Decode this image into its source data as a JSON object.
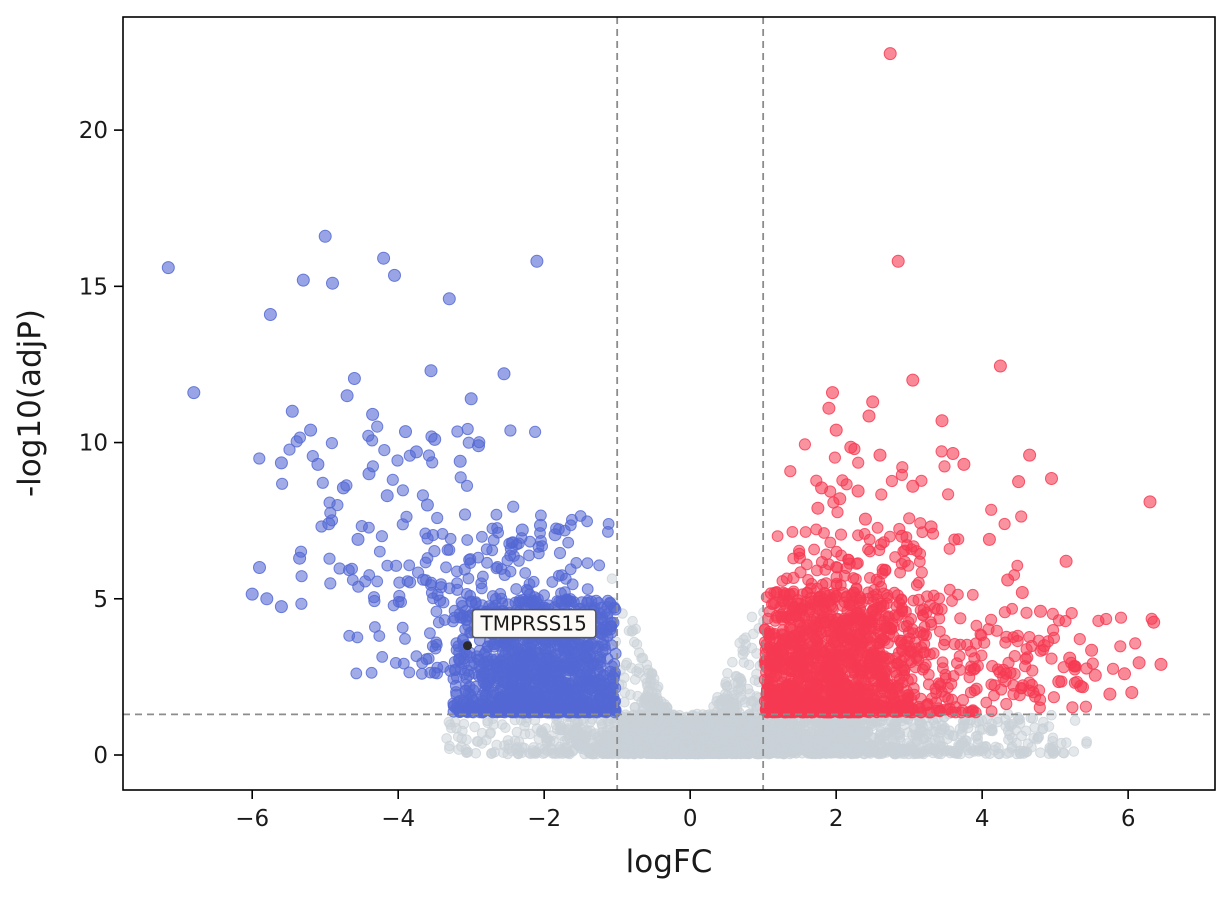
{
  "chart_data": {
    "type": "scatter",
    "title": "",
    "xlabel": "logFC",
    "ylabel": "-log10(adjP)",
    "xlim": [
      -7.77,
      7.19
    ],
    "ylim": [
      -1.12,
      23.62
    ],
    "grid": false,
    "legend": null,
    "seed": 42,
    "xticks": {
      "values": [
        -6,
        -4,
        -2,
        0,
        2,
        4,
        6
      ],
      "labels": [
        "−6",
        "−4",
        "−2",
        "0",
        "2",
        "4",
        "6"
      ]
    },
    "yticks": {
      "values": [
        0,
        5,
        10,
        15,
        20
      ],
      "labels": [
        "0",
        "5",
        "10",
        "15",
        "20"
      ]
    },
    "thresholds": {
      "vlines": [
        -1,
        1
      ],
      "hline": 1.3,
      "color": "#8c8c8c"
    },
    "colors": {
      "up": "#f63a52",
      "down": "#5468d4",
      "ns": "#c9d2d8",
      "spine": "#000000",
      "background": "#ffffff"
    },
    "point_radius_outlier": 6,
    "annotation": {
      "label": "TMPRSS15",
      "point": {
        "x": -3.05,
        "y": 3.5
      },
      "facecolor": "#fbfaf6",
      "edgecolor": "#55585c",
      "textcolor": "#111111",
      "pointcolor": "#2a2a2a"
    },
    "series": [
      {
        "name": "non-significant",
        "color": "#c9d2d8",
        "opacity": 0.5,
        "clusters": [
          {
            "name": "bottom-band",
            "count": 1800,
            "radius": 4.8,
            "x": {
              "dist": "normal",
              "mean": 0.8,
              "sd": 1.9,
              "min": -3.35,
              "max": 5.55
            },
            "y": {
              "dist": "pow",
              "min": 0.03,
              "max": 1.32,
              "exp": 1.6
            }
          },
          {
            "name": "center-valley",
            "count": 1200,
            "radius": 4.8,
            "x": {
              "dist": "normal",
              "mean": 0,
              "sd": 0.5,
              "min": -1.08,
              "max": 1.08
            },
            "y": {
              "dist": "valley",
              "min": 0.04,
              "slope": 5.6,
              "xexp": 1.15,
              "cap": 6.0,
              "yexp": 2.3
            }
          }
        ],
        "points": []
      },
      {
        "name": "down-regulated",
        "color": "#5468d4",
        "opacity": 0.55,
        "clusters": [
          {
            "name": "down-core",
            "count": 1150,
            "radius": 5.4,
            "x": {
              "dist": "normal",
              "mean": -2.0,
              "sd": 0.75,
              "min": -3.25,
              "max": -1.02
            },
            "y": {
              "dist": "pow",
              "min": 1.36,
              "max": 5.0,
              "exp": 1.9
            }
          },
          {
            "name": "down-upper",
            "count": 240,
            "radius": 5.4,
            "x": {
              "dist": "normal",
              "mean": -2.6,
              "sd": 0.9,
              "min": -4.7,
              "max": -1.05
            },
            "y": {
              "dist": "pow",
              "min": 2.6,
              "max": 7.7,
              "exp": 1.5
            }
          },
          {
            "name": "down-high",
            "count": 70,
            "radius": 5.6,
            "x": {
              "dist": "normal",
              "mean": -3.8,
              "sd": 1.1,
              "min": -6.1,
              "max": -1.5
            },
            "y": {
              "dist": "pow",
              "min": 4.8,
              "max": 10.8,
              "exp": 1.1
            }
          }
        ],
        "points": [
          [
            -7.15,
            15.6
          ],
          [
            -6.8,
            11.6
          ],
          [
            -5.75,
            14.1
          ],
          [
            -5.3,
            15.2
          ],
          [
            -5.0,
            16.6
          ],
          [
            -4.9,
            15.1
          ],
          [
            -4.2,
            15.9
          ],
          [
            -4.05,
            15.35
          ],
          [
            -2.1,
            15.8
          ],
          [
            -3.3,
            14.6
          ],
          [
            -4.6,
            12.05
          ],
          [
            -5.45,
            11.0
          ],
          [
            -5.2,
            10.4
          ],
          [
            -4.35,
            10.9
          ],
          [
            -3.9,
            10.35
          ],
          [
            -3.55,
            12.3
          ],
          [
            -2.55,
            12.2
          ],
          [
            -3.0,
            11.4
          ],
          [
            -4.7,
            11.5
          ],
          [
            -5.6,
            9.35
          ],
          [
            -5.1,
            9.3
          ],
          [
            -4.75,
            8.55
          ],
          [
            -4.4,
            9.0
          ],
          [
            -3.75,
            9.7
          ],
          [
            -3.5,
            10.1
          ],
          [
            -3.15,
            9.4
          ],
          [
            -2.9,
            9.9
          ],
          [
            -4.15,
            8.3
          ],
          [
            -3.6,
            8.0
          ],
          [
            -5.9,
            6.0
          ],
          [
            -5.8,
            5.0
          ],
          [
            -5.6,
            4.75
          ],
          [
            -4.95,
            7.4
          ],
          [
            -4.55,
            6.9
          ],
          [
            -5.35,
            6.3
          ],
          [
            -2.3,
            7.2
          ],
          [
            -2.05,
            7.35
          ],
          [
            -6.0,
            5.15
          ],
          [
            -2.45,
            6.6
          ],
          [
            -1.85,
            7.05
          ]
        ]
      },
      {
        "name": "up-regulated",
        "color": "#f63a52",
        "opacity": 0.55,
        "clusters": [
          {
            "name": "up-core",
            "count": 1250,
            "radius": 5.4,
            "x": {
              "dist": "normal",
              "mean": 1.8,
              "sd": 0.85,
              "min": 1.02,
              "max": 4.45
            },
            "y": {
              "dist": "pow",
              "min": 1.36,
              "max": 5.2,
              "exp": 1.9
            }
          },
          {
            "name": "up-upper",
            "count": 220,
            "radius": 5.4,
            "x": {
              "dist": "normal",
              "mean": 2.2,
              "sd": 0.9,
              "min": 1.05,
              "max": 5.1
            },
            "y": {
              "dist": "pow",
              "min": 2.7,
              "max": 7.4,
              "exp": 1.5
            }
          },
          {
            "name": "up-right-sparse",
            "count": 85,
            "radius": 5.6,
            "x": {
              "dist": "normal",
              "mean": 4.7,
              "sd": 0.75,
              "min": 3.4,
              "max": 6.5
            },
            "y": {
              "dist": "pow",
              "min": 1.45,
              "max": 4.6,
              "exp": 1.2
            }
          },
          {
            "name": "up-high",
            "count": 50,
            "radius": 5.6,
            "x": {
              "dist": "normal",
              "mean": 2.5,
              "sd": 0.85,
              "min": 1.3,
              "max": 5.0
            },
            "y": {
              "dist": "pow",
              "min": 4.8,
              "max": 10.2,
              "exp": 1.15
            }
          }
        ],
        "points": [
          [
            2.74,
            22.45
          ],
          [
            2.85,
            15.8
          ],
          [
            4.25,
            12.45
          ],
          [
            3.05,
            12.0
          ],
          [
            1.95,
            11.6
          ],
          [
            1.9,
            11.1
          ],
          [
            2.5,
            11.3
          ],
          [
            2.45,
            10.85
          ],
          [
            3.45,
            10.7
          ],
          [
            2.0,
            10.4
          ],
          [
            2.2,
            9.85
          ],
          [
            2.6,
            9.6
          ],
          [
            3.6,
            9.65
          ],
          [
            3.75,
            9.3
          ],
          [
            4.65,
            9.6
          ],
          [
            4.95,
            8.85
          ],
          [
            6.3,
            8.1
          ],
          [
            2.3,
            8.45
          ],
          [
            1.8,
            8.55
          ],
          [
            3.05,
            8.6
          ],
          [
            2.05,
            8.2
          ],
          [
            1.75,
            7.9
          ],
          [
            2.4,
            7.55
          ],
          [
            3.3,
            7.3
          ],
          [
            2.9,
            7.0
          ],
          [
            4.5,
            8.75
          ],
          [
            4.1,
            6.9
          ],
          [
            5.15,
            6.2
          ],
          [
            4.35,
            5.6
          ],
          [
            4.55,
            5.2
          ],
          [
            4.8,
            4.6
          ],
          [
            6.35,
            4.25
          ],
          [
            6.45,
            2.9
          ],
          [
            6.05,
            2.0
          ],
          [
            5.95,
            2.6
          ],
          [
            5.5,
            3.35
          ],
          [
            5.75,
            1.95
          ],
          [
            6.15,
            2.95
          ],
          [
            5.35,
            2.2
          ],
          [
            5.55,
            2.55
          ],
          [
            5.2,
            3.1
          ],
          [
            4.85,
            3.5
          ],
          [
            5.05,
            2.35
          ]
        ]
      }
    ]
  }
}
